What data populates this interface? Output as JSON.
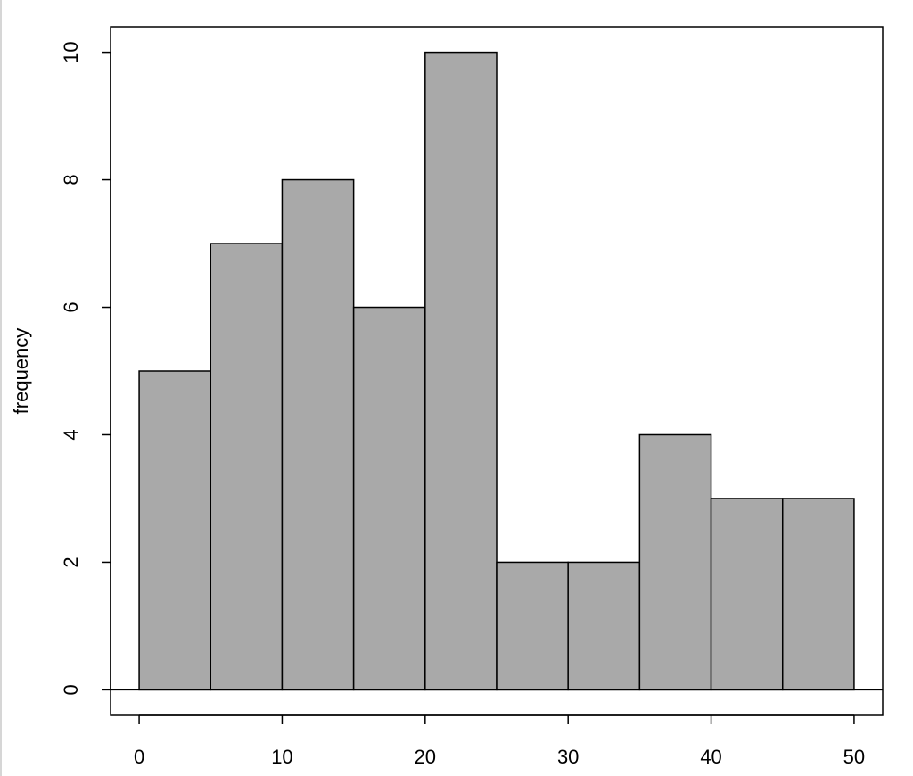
{
  "colors": {
    "background": "#ffffff",
    "bar_fill": "#a9a9a9",
    "bar_stroke": "#000000",
    "axis": "#000000",
    "left_rule": "#d6d6d6"
  },
  "chart_data": {
    "type": "bar",
    "title": "",
    "xlabel": "",
    "ylabel": "frequency",
    "bin_edges": [
      0,
      5,
      10,
      15,
      20,
      25,
      30,
      35,
      40,
      45,
      50
    ],
    "values": [
      5,
      7,
      8,
      6,
      10,
      2,
      2,
      4,
      3,
      3
    ],
    "xlim": [
      -2,
      52
    ],
    "ylim": [
      -0.4,
      10.4
    ],
    "x_ticks": [
      0,
      10,
      20,
      30,
      40,
      50
    ],
    "y_ticks": [
      0,
      2,
      4,
      6,
      8,
      10
    ],
    "x_tick_labels": [
      "0",
      "10",
      "20",
      "30",
      "40",
      "50"
    ],
    "y_tick_labels": [
      "0",
      "2",
      "4",
      "6",
      "8",
      "10"
    ],
    "grid": false,
    "legend": "none"
  }
}
